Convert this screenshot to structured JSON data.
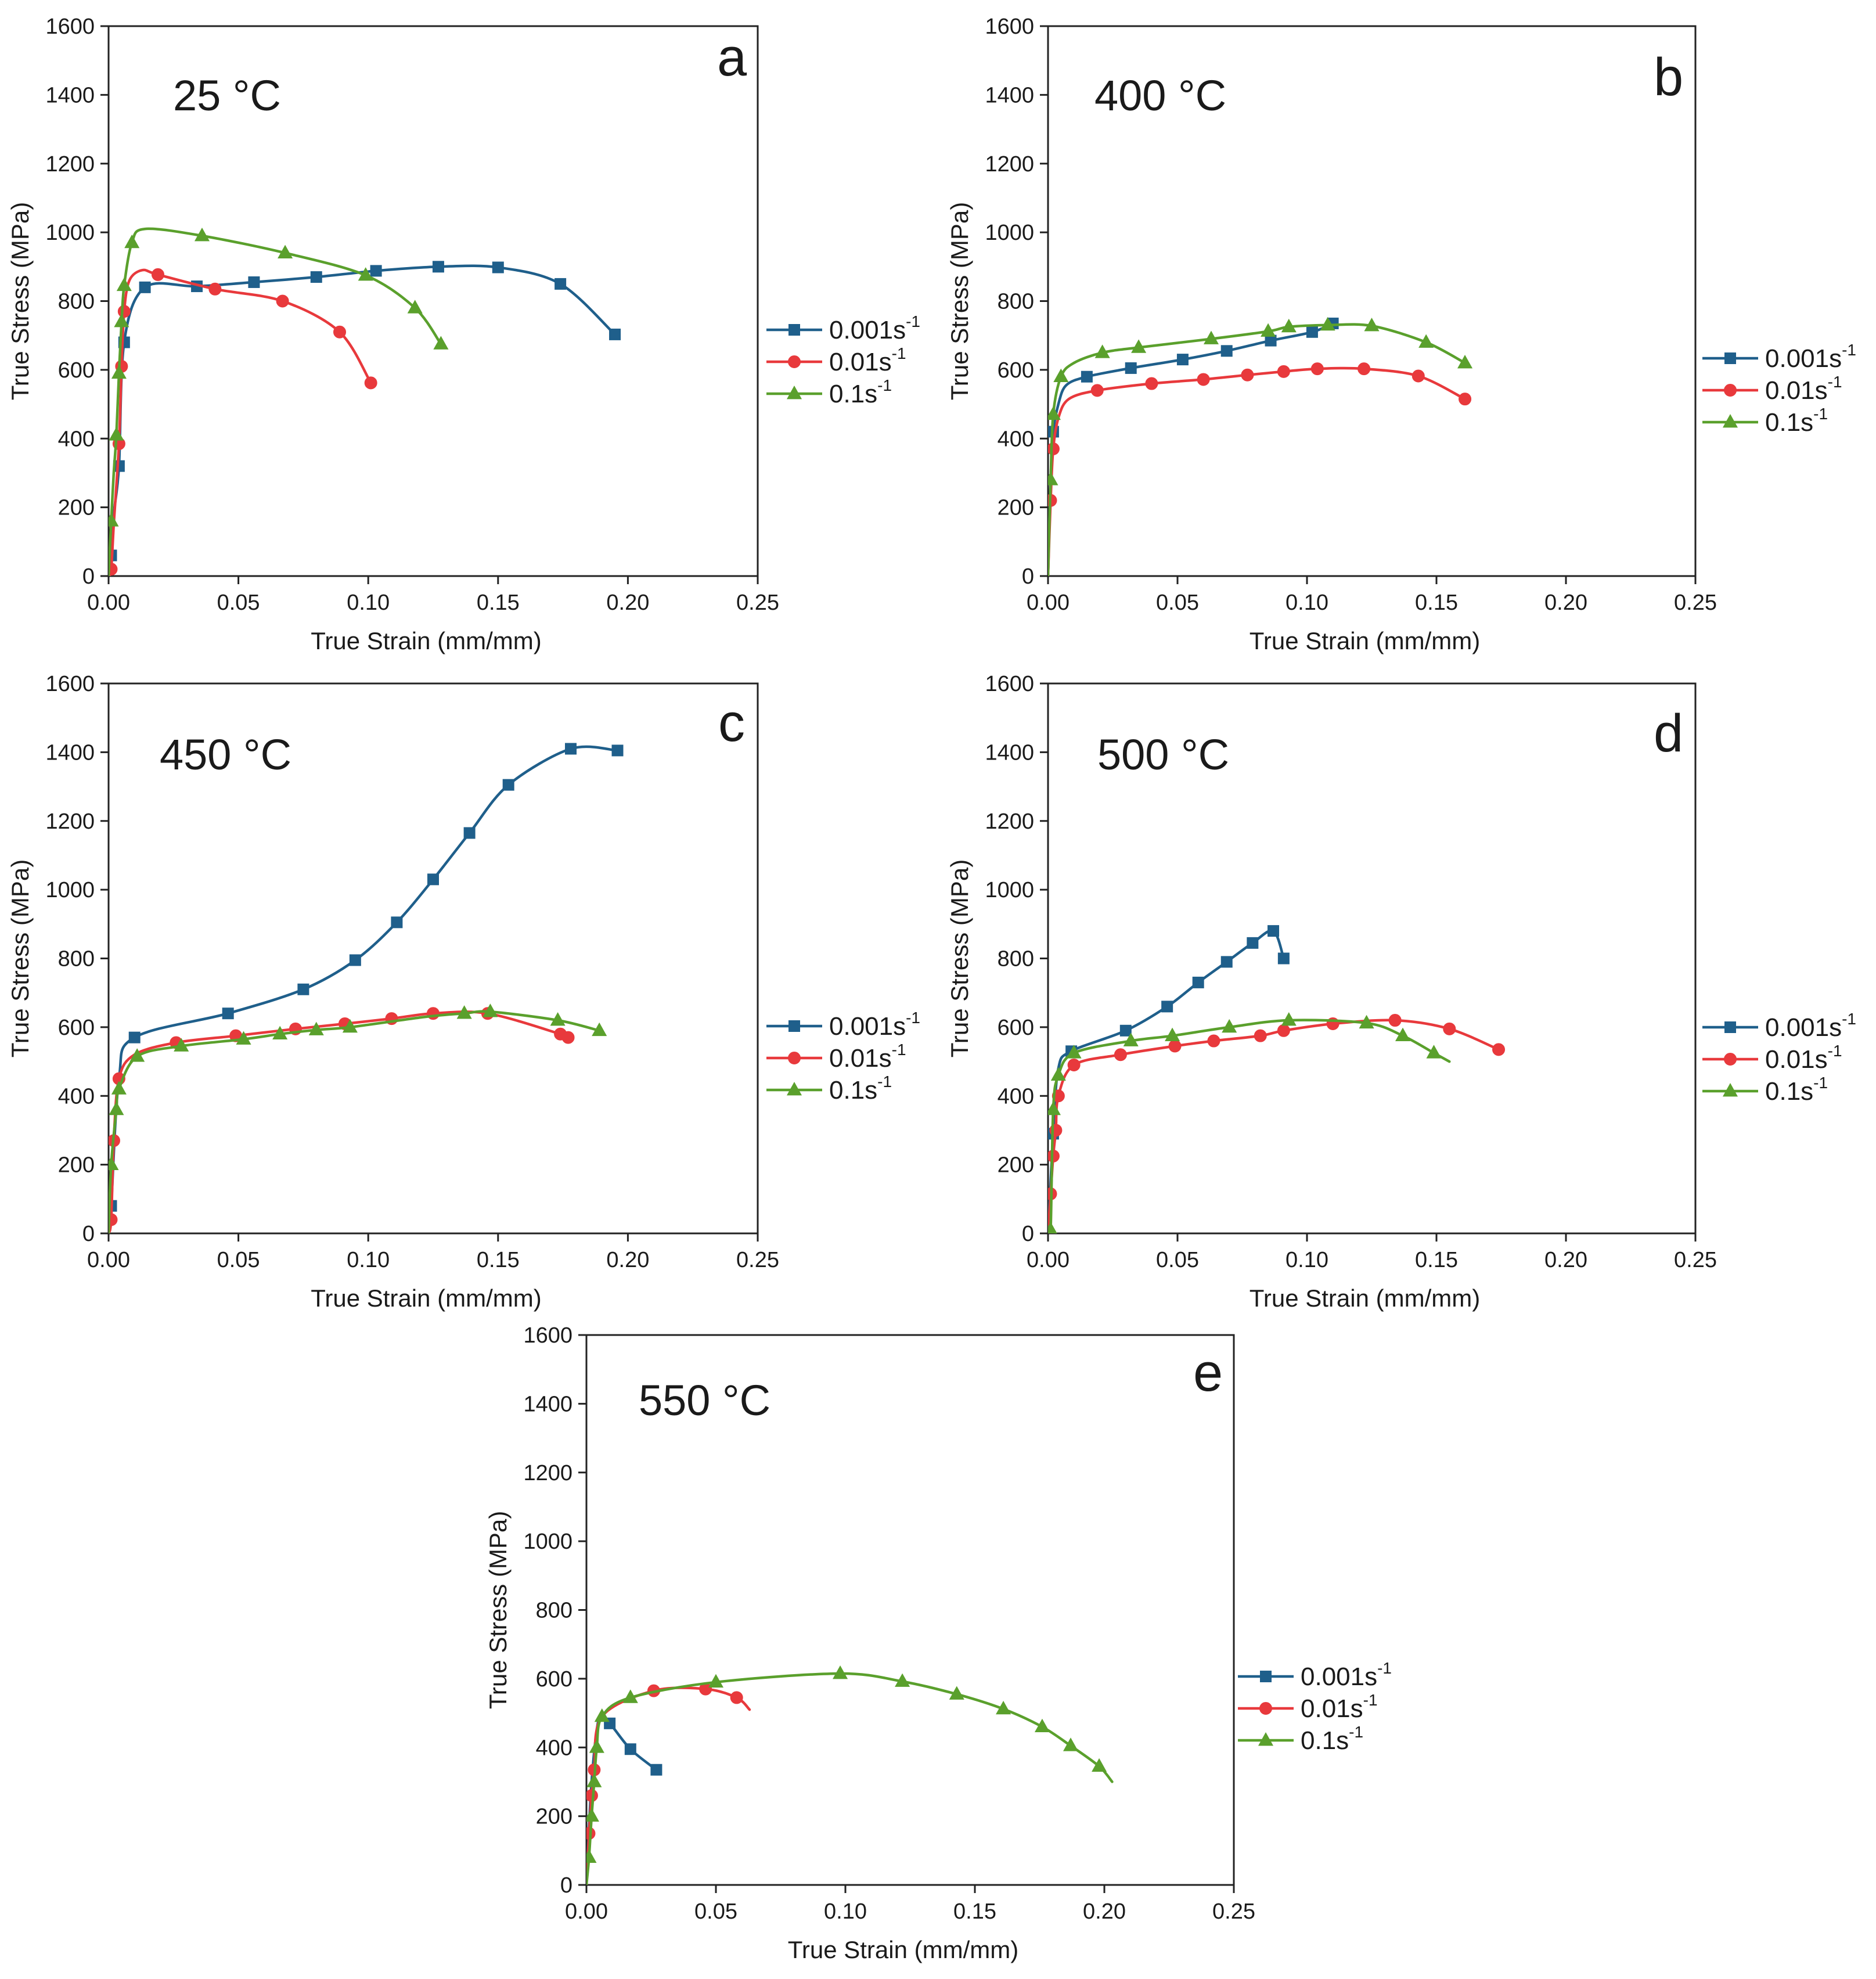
{
  "figure": {
    "temperature_unit": "°C",
    "strain_rate_unit": "s",
    "strain_rate_exponent": "-1"
  },
  "chart_data": [
    {
      "type": "line",
      "panel": "a",
      "temperature": "25 °C",
      "xlabel": "True Strain (mm/mm)",
      "ylabel": "True Stress (MPa)",
      "xlim": [
        0,
        0.25
      ],
      "ylim": [
        0,
        1600
      ],
      "xticks": [
        "0.00",
        "0.05",
        "0.10",
        "0.15",
        "0.20",
        "0.25"
      ],
      "yticks": [
        "0",
        "200",
        "400",
        "600",
        "800",
        "1000",
        "1200",
        "1400",
        "1600"
      ],
      "legend_position": "right",
      "series": [
        {
          "name": "0.001s-1",
          "rate": "0.001",
          "color": "#1f5f8b",
          "marker": "square",
          "x": [
            0.0,
            0.001,
            0.002,
            0.004,
            0.006,
            0.014,
            0.034,
            0.056,
            0.08,
            0.103,
            0.127,
            0.15,
            0.174,
            0.195
          ],
          "y": [
            0,
            60,
            180,
            320,
            680,
            840,
            843,
            855,
            870,
            888,
            900,
            898,
            850,
            703
          ],
          "markers": [
            1,
            3,
            4,
            5,
            6,
            7,
            8,
            9,
            10,
            11,
            12,
            13
          ]
        },
        {
          "name": "0.01s-1",
          "rate": "0.01",
          "color": "#e8393c",
          "marker": "circle",
          "x": [
            0.0,
            0.001,
            0.002,
            0.004,
            0.005,
            0.006,
            0.008,
            0.013,
            0.019,
            0.041,
            0.067,
            0.089,
            0.101
          ],
          "y": [
            0,
            20,
            150,
            385,
            610,
            770,
            860,
            890,
            877,
            835,
            800,
            710,
            562
          ],
          "markers": [
            1,
            3,
            4,
            5,
            8,
            9,
            10,
            11,
            12
          ]
        },
        {
          "name": "0.1s-1",
          "rate": "0.1",
          "color": "#5aa02c",
          "marker": "triangle",
          "x": [
            0.0,
            0.001,
            0.002,
            0.003,
            0.004,
            0.005,
            0.006,
            0.009,
            0.014,
            0.036,
            0.068,
            0.099,
            0.118,
            0.128
          ],
          "y": [
            0,
            160,
            300,
            410,
            590,
            740,
            845,
            970,
            1010,
            990,
            940,
            875,
            780,
            675
          ],
          "markers": [
            1,
            3,
            4,
            5,
            6,
            7,
            9,
            10,
            11,
            12,
            13
          ]
        }
      ]
    },
    {
      "type": "line",
      "panel": "b",
      "temperature": "400 °C",
      "xlabel": "True Strain (mm/mm)",
      "ylabel": "True Stress (MPa)",
      "xlim": [
        0,
        0.25
      ],
      "ylim": [
        0,
        1600
      ],
      "xticks": [
        "0.00",
        "0.05",
        "0.10",
        "0.15",
        "0.20",
        "0.25"
      ],
      "yticks": [
        "0",
        "200",
        "400",
        "600",
        "800",
        "1000",
        "1200",
        "1400",
        "1600"
      ],
      "legend_position": "right",
      "series": [
        {
          "name": "0.001s-1",
          "rate": "0.001",
          "color": "#1f5f8b",
          "marker": "square",
          "x": [
            0.0,
            0.001,
            0.002,
            0.004,
            0.007,
            0.015,
            0.032,
            0.052,
            0.069,
            0.086,
            0.102,
            0.11
          ],
          "y": [
            0,
            280,
            420,
            500,
            555,
            580,
            605,
            630,
            655,
            685,
            710,
            735
          ],
          "markers": [
            2,
            5,
            6,
            7,
            8,
            9,
            10,
            11
          ]
        },
        {
          "name": "0.01s-1",
          "rate": "0.01",
          "color": "#e8393c",
          "marker": "circle",
          "x": [
            0.0,
            0.001,
            0.002,
            0.004,
            0.008,
            0.019,
            0.04,
            0.06,
            0.077,
            0.091,
            0.104,
            0.122,
            0.143,
            0.161
          ],
          "y": [
            0,
            220,
            370,
            460,
            515,
            540,
            560,
            572,
            585,
            595,
            603,
            603,
            582,
            515
          ],
          "markers": [
            1,
            2,
            5,
            6,
            7,
            8,
            9,
            10,
            11,
            12,
            13
          ]
        },
        {
          "name": "0.1s-1",
          "rate": "0.1",
          "color": "#5aa02c",
          "marker": "triangle",
          "x": [
            0.0,
            0.001,
            0.002,
            0.005,
            0.01,
            0.021,
            0.035,
            0.063,
            0.085,
            0.093,
            0.108,
            0.125,
            0.146,
            0.161
          ],
          "y": [
            0,
            280,
            470,
            580,
            620,
            650,
            665,
            690,
            712,
            725,
            730,
            728,
            680,
            620
          ],
          "markers": [
            1,
            2,
            3,
            5,
            6,
            7,
            8,
            9,
            10,
            11,
            12,
            13
          ]
        }
      ]
    },
    {
      "type": "line",
      "panel": "c",
      "temperature": "450 °C",
      "xlabel": "True Strain (mm/mm)",
      "ylabel": "True Stress (MPa)",
      "xlim": [
        0,
        0.25
      ],
      "ylim": [
        0,
        1600
      ],
      "xticks": [
        "0.00",
        "0.05",
        "0.10",
        "0.15",
        "0.20",
        "0.25"
      ],
      "yticks": [
        "0",
        "200",
        "400",
        "600",
        "800",
        "1000",
        "1200",
        "1400",
        "1600"
      ],
      "legend_position": "right",
      "series": [
        {
          "name": "0.001s-1",
          "rate": "0.001",
          "color": "#1f5f8b",
          "marker": "square",
          "x": [
            0.0,
            0.001,
            0.004,
            0.01,
            0.046,
            0.075,
            0.095,
            0.111,
            0.125,
            0.139,
            0.154,
            0.178,
            0.196
          ],
          "y": [
            0,
            80,
            450,
            570,
            640,
            710,
            795,
            905,
            1030,
            1165,
            1305,
            1410,
            1405
          ],
          "markers": [
            1,
            3,
            4,
            5,
            6,
            7,
            8,
            9,
            10,
            11,
            12
          ]
        },
        {
          "name": "0.01s-1",
          "rate": "0.01",
          "color": "#e8393c",
          "marker": "circle",
          "x": [
            0.0,
            0.001,
            0.002,
            0.004,
            0.01,
            0.026,
            0.049,
            0.072,
            0.091,
            0.109,
            0.125,
            0.146,
            0.174,
            0.177
          ],
          "y": [
            0,
            40,
            270,
            450,
            520,
            555,
            575,
            595,
            610,
            625,
            640,
            640,
            580,
            570
          ],
          "markers": [
            1,
            2,
            3,
            5,
            6,
            7,
            8,
            9,
            10,
            11,
            12,
            13
          ]
        },
        {
          "name": "0.1s-1",
          "rate": "0.1",
          "color": "#5aa02c",
          "marker": "triangle",
          "x": [
            0.0,
            0.001,
            0.003,
            0.004,
            0.011,
            0.028,
            0.052,
            0.066,
            0.08,
            0.093,
            0.122,
            0.137,
            0.147,
            0.173,
            0.189
          ],
          "y": [
            0,
            200,
            360,
            420,
            515,
            545,
            565,
            580,
            592,
            600,
            630,
            640,
            645,
            620,
            590
          ],
          "markers": [
            1,
            2,
            3,
            4,
            5,
            6,
            7,
            8,
            9,
            11,
            12,
            13,
            14
          ]
        }
      ]
    },
    {
      "type": "line",
      "panel": "d",
      "temperature": "500 °C",
      "xlabel": "True Strain (mm/mm)",
      "ylabel": "True Stress (MPa)",
      "xlim": [
        0,
        0.25
      ],
      "ylim": [
        0,
        1600
      ],
      "xticks": [
        "0.00",
        "0.05",
        "0.10",
        "0.15",
        "0.20",
        "0.25"
      ],
      "yticks": [
        "0",
        "200",
        "400",
        "600",
        "800",
        "1000",
        "1200",
        "1400",
        "1600"
      ],
      "legend_position": "right",
      "series": [
        {
          "name": "0.001s-1",
          "rate": "0.001",
          "color": "#1f5f8b",
          "marker": "square",
          "x": [
            0.0,
            0.002,
            0.004,
            0.009,
            0.03,
            0.046,
            0.058,
            0.069,
            0.079,
            0.087,
            0.091
          ],
          "y": [
            0,
            290,
            480,
            530,
            590,
            660,
            730,
            790,
            845,
            880,
            800
          ],
          "markers": [
            1,
            3,
            4,
            5,
            6,
            7,
            8,
            9,
            10
          ]
        },
        {
          "name": "0.01s-1",
          "rate": "0.01",
          "color": "#e8393c",
          "marker": "circle",
          "x": [
            0.0,
            0.001,
            0.002,
            0.003,
            0.004,
            0.01,
            0.028,
            0.049,
            0.064,
            0.082,
            0.091,
            0.11,
            0.134,
            0.155,
            0.174
          ],
          "y": [
            0,
            115,
            225,
            300,
            400,
            490,
            520,
            545,
            560,
            575,
            590,
            610,
            620,
            595,
            535
          ],
          "markers": [
            1,
            2,
            3,
            4,
            5,
            6,
            7,
            8,
            9,
            10,
            11,
            12,
            13,
            14
          ]
        },
        {
          "name": "0.1s-1",
          "rate": "0.1",
          "color": "#5aa02c",
          "marker": "triangle",
          "x": [
            0.0,
            0.001,
            0.002,
            0.004,
            0.01,
            0.032,
            0.048,
            0.07,
            0.093,
            0.123,
            0.137,
            0.149,
            0.155
          ],
          "y": [
            0,
            10,
            360,
            460,
            525,
            560,
            575,
            600,
            620,
            612,
            575,
            525,
            500
          ],
          "markers": [
            1,
            2,
            3,
            4,
            5,
            6,
            7,
            8,
            9,
            10,
            11
          ]
        }
      ]
    },
    {
      "type": "line",
      "panel": "e",
      "temperature": "550 °C",
      "xlabel": "True Strain (mm/mm)",
      "ylabel": "True Stress (MPa)",
      "xlim": [
        0,
        0.25
      ],
      "ylim": [
        0,
        1600
      ],
      "xticks": [
        "0.00",
        "0.05",
        "0.10",
        "0.15",
        "0.20",
        "0.25"
      ],
      "yticks": [
        "0",
        "200",
        "400",
        "600",
        "800",
        "1000",
        "1200",
        "1400",
        "1600"
      ],
      "legend_position": "right",
      "series": [
        {
          "name": "0.001s-1",
          "rate": "0.001",
          "color": "#1f5f8b",
          "marker": "square",
          "x": [
            0.0,
            0.002,
            0.005,
            0.009,
            0.017,
            0.027
          ],
          "y": [
            0,
            300,
            490,
            470,
            395,
            335
          ],
          "markers": [
            3,
            4,
            5
          ]
        },
        {
          "name": "0.01s-1",
          "rate": "0.01",
          "color": "#e8393c",
          "marker": "circle",
          "x": [
            0.0,
            0.001,
            0.002,
            0.003,
            0.006,
            0.026,
            0.046,
            0.058,
            0.063
          ],
          "y": [
            0,
            150,
            260,
            335,
            490,
            565,
            570,
            545,
            510
          ],
          "markers": [
            1,
            2,
            3,
            5,
            6,
            7
          ]
        },
        {
          "name": "0.1s-1",
          "rate": "0.1",
          "color": "#5aa02c",
          "marker": "triangle",
          "x": [
            0.0,
            0.001,
            0.002,
            0.003,
            0.004,
            0.006,
            0.017,
            0.05,
            0.098,
            0.122,
            0.143,
            0.161,
            0.176,
            0.187,
            0.198,
            0.203
          ],
          "y": [
            0,
            80,
            200,
            300,
            400,
            490,
            545,
            590,
            615,
            592,
            555,
            512,
            460,
            405,
            345,
            300
          ],
          "markers": [
            1,
            2,
            3,
            4,
            5,
            6,
            7,
            8,
            9,
            10,
            11,
            12,
            13,
            14
          ]
        }
      ]
    }
  ]
}
